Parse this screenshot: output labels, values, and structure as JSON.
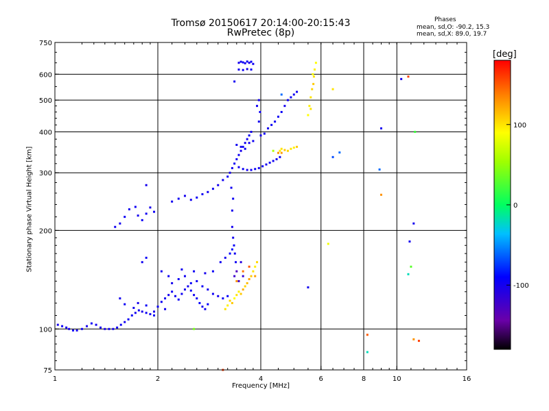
{
  "title": "Tromsø 20150617 20:14:00-20:15:43",
  "subtitle": "RwPretec (8p)",
  "stats": {
    "header": "Phases",
    "line_o": "mean, sd,O: -90.2, 15.3",
    "line_x": "mean, sd,X: 89.0, 19.7"
  },
  "colorbar": {
    "label": "[deg]",
    "min": -180,
    "max": 180,
    "ticks": [
      100,
      0,
      -100
    ]
  },
  "colors": {
    "grid": "#000000",
    "background": "#ffffff"
  },
  "chart_data": {
    "type": "scatter",
    "title": "Tromsø 20150617 20:14:00-20:15:43",
    "subtitle": "RwPretec (8p)",
    "xlabel": "Frequency [MHz]",
    "ylabel": "Stationary phase Virtual Height [km]",
    "xscale": "log",
    "yscale": "log",
    "xlim": [
      1,
      16
    ],
    "ylim": [
      75,
      750
    ],
    "xticks": [
      1,
      2,
      4,
      6,
      8,
      10,
      16
    ],
    "yticks": [
      75,
      100,
      200,
      300,
      400,
      500,
      600,
      750
    ],
    "grid": true,
    "color_by": "phase_deg",
    "series": [
      {
        "values": [
          [
            1.02,
            103,
            -100
          ],
          [
            1.05,
            102,
            -95
          ],
          [
            1.08,
            101,
            -98
          ],
          [
            1.1,
            100,
            -102
          ],
          [
            1.13,
            99,
            -96
          ],
          [
            1.16,
            99,
            -100
          ],
          [
            1.2,
            100,
            -97
          ],
          [
            1.24,
            102,
            -101
          ],
          [
            1.28,
            104,
            -95
          ],
          [
            1.32,
            103,
            -99
          ],
          [
            1.36,
            101,
            -100
          ],
          [
            1.4,
            100,
            -103
          ],
          [
            1.44,
            100,
            -98
          ],
          [
            1.48,
            100,
            -100
          ],
          [
            1.52,
            101,
            -97
          ],
          [
            1.56,
            103,
            -95
          ],
          [
            1.6,
            105,
            -99
          ],
          [
            1.64,
            107,
            -96
          ],
          [
            1.68,
            110,
            -94
          ],
          [
            1.72,
            112,
            -100
          ],
          [
            1.76,
            114,
            -97
          ],
          [
            1.8,
            113,
            -102
          ],
          [
            1.85,
            112,
            -96
          ],
          [
            1.9,
            111,
            -99
          ],
          [
            1.95,
            113,
            -101
          ],
          [
            2.0,
            117,
            -95
          ],
          [
            2.05,
            121,
            -97
          ],
          [
            2.1,
            124,
            -99
          ],
          [
            2.15,
            127,
            -100
          ],
          [
            2.2,
            130,
            -96
          ],
          [
            2.25,
            126,
            -98
          ],
          [
            2.3,
            123,
            -94
          ],
          [
            2.35,
            128,
            -97
          ],
          [
            2.4,
            132,
            -100
          ],
          [
            2.45,
            135,
            -99
          ],
          [
            2.5,
            131,
            -95
          ],
          [
            2.55,
            127,
            -98
          ],
          [
            2.6,
            124,
            -96
          ],
          [
            2.65,
            120,
            -92
          ],
          [
            2.7,
            117,
            -100
          ],
          [
            2.75,
            115,
            -97
          ],
          [
            2.8,
            119,
            -93
          ],
          [
            1.55,
            124,
            -100
          ],
          [
            1.6,
            119,
            -96
          ],
          [
            1.7,
            116,
            -99
          ],
          [
            1.75,
            120,
            -101
          ],
          [
            1.85,
            118,
            -95
          ],
          [
            1.95,
            110,
            -97
          ],
          [
            2.1,
            115,
            -99
          ],
          [
            2.2,
            138,
            -100
          ],
          [
            2.3,
            142,
            -96
          ],
          [
            2.4,
            145,
            -98
          ],
          [
            2.5,
            138,
            -94
          ],
          [
            2.6,
            140,
            -97
          ],
          [
            2.7,
            135,
            -95
          ],
          [
            2.8,
            132,
            -99
          ],
          [
            2.9,
            128,
            -97
          ],
          [
            3.0,
            126,
            -100
          ],
          [
            3.1,
            124,
            -96
          ],
          [
            3.2,
            126,
            -93
          ],
          [
            1.8,
            160,
            -98
          ],
          [
            1.85,
            165,
            -95
          ],
          [
            2.05,
            150,
            -100
          ],
          [
            2.15,
            145,
            -97
          ],
          [
            2.35,
            152,
            -99
          ],
          [
            2.55,
            150,
            -96
          ],
          [
            2.75,
            148,
            -101
          ],
          [
            2.9,
            150,
            -95
          ],
          [
            3.05,
            160,
            -98
          ],
          [
            3.15,
            165,
            -100
          ],
          [
            3.25,
            170,
            -90
          ],
          [
            3.3,
            175,
            -88
          ],
          [
            3.35,
            145,
            -120
          ],
          [
            3.4,
            150,
            -130
          ],
          [
            3.45,
            140,
            -125
          ],
          [
            3.5,
            160,
            -110
          ],
          [
            3.55,
            145,
            -115
          ],
          [
            1.5,
            205,
            -98
          ],
          [
            1.55,
            210,
            -100
          ],
          [
            1.6,
            220,
            -96
          ],
          [
            1.65,
            232,
            -99
          ],
          [
            1.72,
            236,
            -97
          ],
          [
            1.75,
            222,
            -100
          ],
          [
            1.8,
            215,
            -95
          ],
          [
            1.85,
            225,
            -98
          ],
          [
            1.9,
            235,
            -101
          ],
          [
            1.95,
            228,
            -97
          ],
          [
            2.2,
            245,
            -99
          ],
          [
            2.3,
            250,
            -96
          ],
          [
            2.4,
            255,
            -100
          ],
          [
            2.5,
            248,
            -98
          ],
          [
            2.6,
            252,
            -94
          ],
          [
            2.7,
            258,
            -97
          ],
          [
            2.8,
            262,
            -99
          ],
          [
            2.9,
            268,
            -96
          ],
          [
            3.0,
            275,
            -100
          ],
          [
            3.1,
            285,
            -98
          ],
          [
            3.2,
            292,
            -95
          ],
          [
            1.85,
            275,
            -100
          ],
          [
            3.25,
            300,
            -100
          ],
          [
            3.3,
            310,
            -98
          ],
          [
            3.35,
            320,
            -96
          ],
          [
            3.4,
            330,
            -99
          ],
          [
            3.45,
            340,
            -97
          ],
          [
            3.5,
            350,
            -101
          ],
          [
            3.55,
            360,
            -95
          ],
          [
            3.6,
            370,
            -98
          ],
          [
            3.65,
            380,
            -100
          ],
          [
            3.7,
            390,
            -96
          ],
          [
            3.75,
            400,
            -99
          ],
          [
            3.3,
            205,
            -100
          ],
          [
            3.32,
            190,
            -98
          ],
          [
            3.34,
            180,
            -95
          ],
          [
            3.36,
            170,
            -99
          ],
          [
            3.38,
            160,
            -97
          ],
          [
            3.3,
            230,
            -100
          ],
          [
            3.32,
            250,
            -96
          ],
          [
            3.28,
            270,
            -98
          ],
          [
            3.45,
            312,
            -99
          ],
          [
            3.55,
            308,
            -96
          ],
          [
            3.65,
            306,
            -100
          ],
          [
            3.75,
            306,
            -97
          ],
          [
            3.85,
            308,
            -95
          ],
          [
            3.95,
            310,
            -99
          ],
          [
            4.05,
            314,
            -97
          ],
          [
            4.15,
            318,
            -100
          ],
          [
            4.25,
            322,
            -96
          ],
          [
            4.35,
            326,
            -98
          ],
          [
            4.45,
            330,
            -100
          ],
          [
            4.55,
            335,
            -96
          ],
          [
            3.4,
            365,
            -98
          ],
          [
            3.5,
            360,
            -100
          ],
          [
            3.6,
            355,
            -96
          ],
          [
            3.7,
            370,
            -99
          ],
          [
            3.8,
            375,
            -97
          ],
          [
            4.0,
            390,
            -100
          ],
          [
            4.1,
            395,
            -96
          ],
          [
            4.2,
            410,
            -98
          ],
          [
            4.3,
            420,
            -95
          ],
          [
            4.4,
            430,
            -99
          ],
          [
            4.5,
            445,
            -97
          ],
          [
            4.6,
            460,
            -95
          ],
          [
            4.7,
            480,
            -100
          ],
          [
            4.8,
            500,
            -98
          ],
          [
            4.9,
            510,
            -96
          ],
          [
            5.0,
            520,
            -99
          ],
          [
            5.1,
            530,
            -97
          ],
          [
            3.95,
            430,
            -100
          ],
          [
            3.98,
            460,
            -96
          ],
          [
            3.9,
            480,
            -98
          ],
          [
            3.95,
            500,
            -99
          ],
          [
            3.45,
            650,
            -100
          ],
          [
            3.5,
            655,
            -98
          ],
          [
            3.55,
            652,
            -96
          ],
          [
            3.6,
            648,
            -101
          ],
          [
            3.65,
            656,
            -97
          ],
          [
            3.7,
            650,
            -100
          ],
          [
            3.75,
            655,
            -95
          ],
          [
            3.8,
            645,
            -98
          ],
          [
            3.45,
            620,
            -99
          ],
          [
            3.55,
            618,
            -96
          ],
          [
            3.65,
            622,
            -100
          ],
          [
            3.75,
            620,
            -97
          ],
          [
            3.35,
            570,
            -98
          ],
          [
            3.15,
            115,
            100
          ],
          [
            3.2,
            118,
            95
          ],
          [
            3.25,
            122,
            105
          ],
          [
            3.3,
            120,
            110
          ],
          [
            3.35,
            124,
            90
          ],
          [
            3.4,
            127,
            100
          ],
          [
            3.45,
            130,
            95
          ],
          [
            3.5,
            128,
            110
          ],
          [
            3.55,
            132,
            120
          ],
          [
            3.6,
            135,
            105
          ],
          [
            3.65,
            138,
            115
          ],
          [
            3.7,
            142,
            125
          ],
          [
            3.75,
            145,
            110
          ],
          [
            3.8,
            150,
            100
          ],
          [
            3.85,
            155,
            95
          ],
          [
            3.9,
            160,
            105
          ],
          [
            3.4,
            140,
            130
          ],
          [
            3.55,
            150,
            140
          ],
          [
            3.7,
            155,
            150
          ],
          [
            3.85,
            145,
            125
          ],
          [
            4.55,
            350,
            95
          ],
          [
            4.6,
            355,
            100
          ],
          [
            4.7,
            352,
            110
          ],
          [
            4.8,
            350,
            105
          ],
          [
            4.9,
            355,
            100
          ],
          [
            5.0,
            358,
            95
          ],
          [
            5.1,
            360,
            110
          ],
          [
            4.5,
            345,
            130
          ],
          [
            4.6,
            345,
            125
          ],
          [
            5.5,
            450,
            90
          ],
          [
            5.55,
            480,
            95
          ],
          [
            5.6,
            510,
            100
          ],
          [
            5.65,
            540,
            105
          ],
          [
            5.7,
            560,
            110
          ],
          [
            5.72,
            590,
            100
          ],
          [
            5.75,
            620,
            95
          ],
          [
            5.68,
            600,
            88
          ],
          [
            5.6,
            470,
            100
          ],
          [
            5.8,
            650,
            90
          ],
          [
            6.5,
            540,
            100
          ],
          [
            6.3,
            182,
            85
          ],
          [
            2.55,
            100,
            40
          ],
          [
            8.2,
            96,
            150
          ],
          [
            10.3,
            580,
            -100
          ],
          [
            11.2,
            210,
            -100
          ],
          [
            10.8,
            590,
            160
          ],
          [
            9.0,
            257,
            130
          ],
          [
            9.0,
            410,
            -100
          ],
          [
            8.9,
            307,
            -60
          ],
          [
            6.8,
            346,
            -60
          ],
          [
            6.5,
            335,
            -70
          ],
          [
            5.5,
            134,
            -100
          ],
          [
            10.9,
            185,
            -100
          ],
          [
            11.0,
            155,
            30
          ],
          [
            11.2,
            93,
            130
          ],
          [
            11.6,
            92,
            160
          ],
          [
            8.2,
            85,
            -20
          ],
          [
            10.8,
            147,
            -20
          ],
          [
            11.3,
            400,
            20
          ],
          [
            4.35,
            350,
            60
          ],
          [
            3.1,
            75,
            160
          ],
          [
            4.6,
            520,
            -60
          ]
        ]
      }
    ]
  }
}
